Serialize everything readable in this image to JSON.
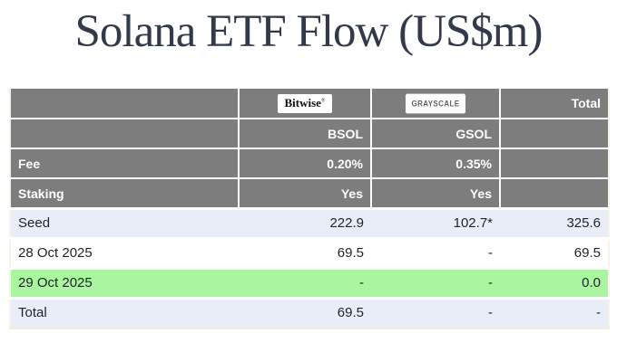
{
  "page": {
    "title": "Solana ETF Flow (US$m)"
  },
  "colors": {
    "title_text": "#323949",
    "header_gray": "#7d7d7d",
    "header_text": "#ffffff",
    "row_lavender": "#e9edf8",
    "row_white": "#ffffff",
    "row_green": "#aaf5a0",
    "data_text": "#1f2327",
    "table_border_cream": "#f2ecdc"
  },
  "table": {
    "logo_row": {
      "corner": "",
      "bitwise_logo": "Bitwise",
      "bitwise_mark": "®",
      "grayscale_logo": "GRAYSCALE",
      "total": "Total"
    },
    "ticker_row": {
      "label": "",
      "bsol": "BSOL",
      "gsol": "GSOL",
      "total": ""
    },
    "attribute_rows": [
      {
        "label": "Fee",
        "bsol": "0.20%",
        "gsol": "0.35%",
        "total": ""
      },
      {
        "label": "Staking",
        "bsol": "Yes",
        "gsol": "Yes",
        "total": ""
      }
    ],
    "data_rows": [
      {
        "label": "Seed",
        "bsol": "222.9",
        "gsol": "102.7*",
        "total": "325.6",
        "highlight": "lavender"
      },
      {
        "label": "28 Oct 2025",
        "bsol": "69.5",
        "gsol": "-",
        "total": "69.5",
        "highlight": "white"
      },
      {
        "label": "29 Oct 2025",
        "bsol": "-",
        "gsol": "-",
        "total": "0.0",
        "highlight": "green"
      },
      {
        "label": "Total",
        "bsol": "69.5",
        "gsol": "-",
        "total": "-",
        "highlight": "lavender"
      }
    ]
  }
}
